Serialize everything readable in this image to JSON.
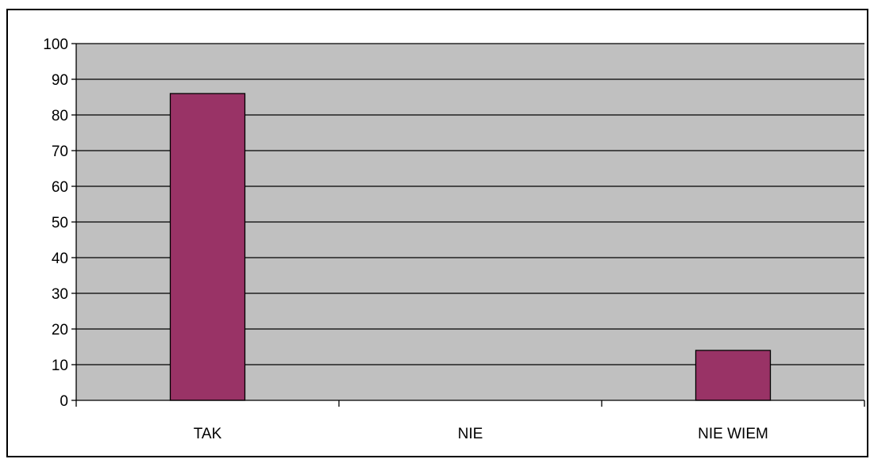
{
  "chart_data": {
    "type": "bar",
    "categories": [
      "TAK",
      "NIE",
      "NIE WIEM"
    ],
    "values": [
      86,
      0,
      14
    ],
    "ylim": [
      0,
      100
    ],
    "yticks": [
      0,
      10,
      20,
      30,
      40,
      50,
      60,
      70,
      80,
      90,
      100
    ],
    "grid": true,
    "legend": "none",
    "colors": {
      "bar": "#993366",
      "plot_background": "#c0c0c0",
      "grid": "#000000"
    }
  }
}
